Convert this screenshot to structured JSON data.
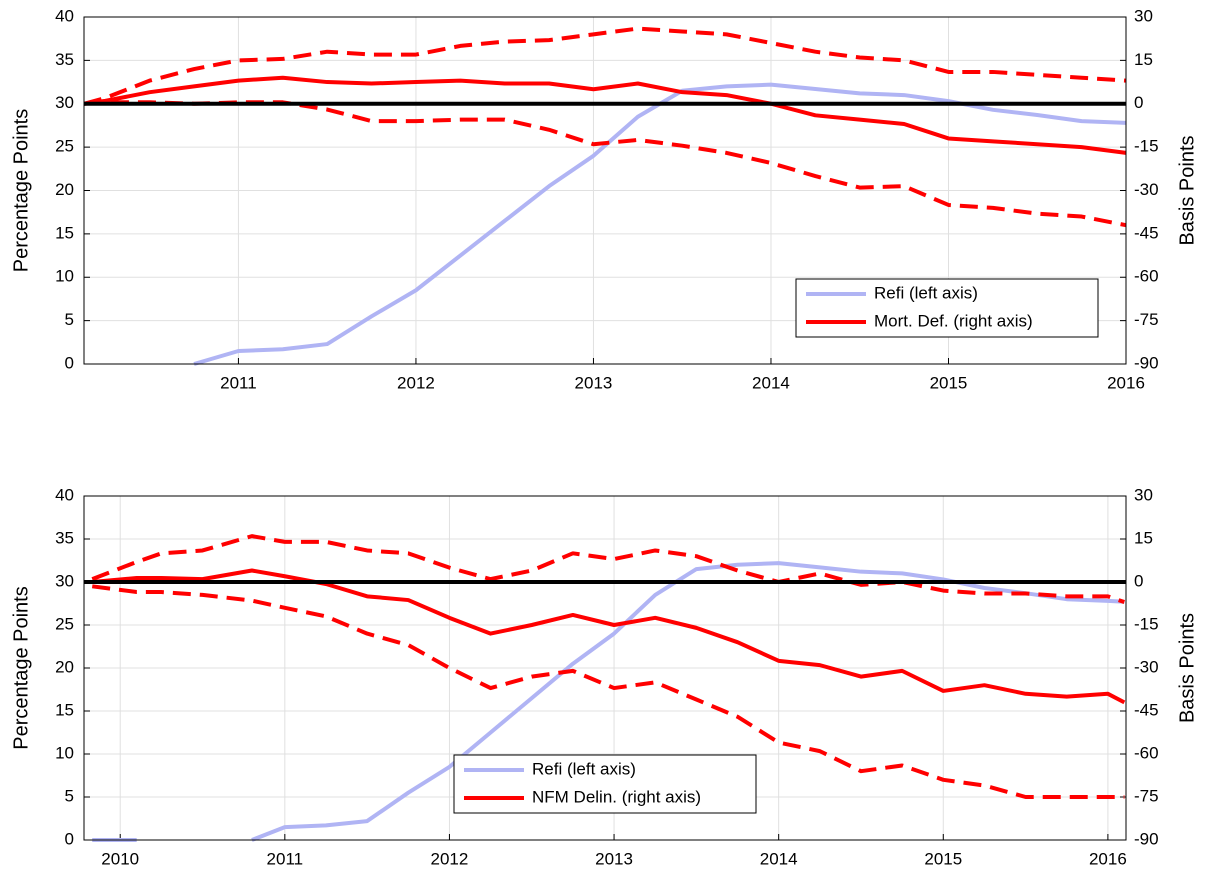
{
  "chart_data": [
    {
      "type": "line",
      "x": [
        2010.13,
        2010.25,
        2010.5,
        2010.75,
        2011,
        2011.25,
        2011.5,
        2011.75,
        2012,
        2012.25,
        2012.5,
        2012.75,
        2013,
        2013.25,
        2013.5,
        2013.75,
        2014,
        2014.25,
        2014.5,
        2014.75,
        2015,
        2015.25,
        2015.5,
        2015.75,
        2016
      ],
      "xlim": [
        2010.13,
        2016
      ],
      "xticks": [
        2011,
        2012,
        2013,
        2014,
        2015,
        2016
      ],
      "ylim": [
        0,
        40
      ],
      "yticks": [
        0,
        5,
        10,
        15,
        20,
        25,
        30,
        35,
        40
      ],
      "y2lim": [
        -90,
        30
      ],
      "y2ticks": [
        -90,
        -75,
        -60,
        -45,
        -30,
        -15,
        0,
        15,
        30
      ],
      "y_label": "Percentage Points",
      "y2_label": "Basis Points",
      "grid": true,
      "legend": "lower right",
      "reference_line": {
        "axis": "y2",
        "value": 0,
        "color": "#000000"
      },
      "series": [
        {
          "name": "Refi (left axis)",
          "color": "#b0b4f4",
          "values": [
            null,
            null,
            null,
            0,
            1.5,
            1.7,
            2.3,
            5.5,
            8.5,
            12.5,
            16.5,
            20.5,
            24,
            28.5,
            31.5,
            32,
            32.2,
            31.7,
            31.2,
            31,
            30.3,
            29.3,
            28.7,
            28,
            27.8
          ]
        },
        {
          "name": "Mort. Def. (right axis)",
          "color": "#ff0000",
          "axis": "y2",
          "values": [
            0,
            1,
            4,
            6,
            8,
            9,
            7.5,
            7,
            7.5,
            8,
            7,
            7,
            5,
            7,
            4,
            3,
            0,
            -4,
            -5.5,
            -7,
            -12,
            -13,
            -14,
            -15,
            -17
          ]
        },
        {
          "color": "#ff0000",
          "axis": "y2",
          "dashed": true,
          "values": [
            0,
            2,
            8,
            12,
            15,
            15.5,
            18,
            17,
            17,
            20,
            21.5,
            22,
            24,
            26,
            25,
            24,
            21,
            18,
            16,
            15,
            11,
            11,
            10,
            9,
            8
          ]
        },
        {
          "color": "#ff0000",
          "axis": "y2",
          "dashed": true,
          "values": [
            0,
            0.5,
            0.5,
            0,
            0.5,
            0.5,
            -2,
            -6,
            -6,
            -5.5,
            -5.5,
            -9,
            -14,
            -12.5,
            -14.5,
            -17,
            -20.5,
            -25,
            -29,
            -28.5,
            -35,
            -36,
            -38,
            -39,
            -42
          ]
        }
      ]
    },
    {
      "type": "line",
      "x": [
        2009.83,
        2010.1,
        2010.25,
        2010.5,
        2010.8,
        2011,
        2011.25,
        2011.5,
        2011.75,
        2012,
        2012.25,
        2012.5,
        2012.75,
        2013,
        2013.25,
        2013.5,
        2013.75,
        2014,
        2014.25,
        2014.5,
        2014.75,
        2015,
        2015.25,
        2015.5,
        2015.75,
        2016,
        2016.1
      ],
      "xlim": [
        2009.78,
        2016.11
      ],
      "xticks": [
        2010,
        2011,
        2012,
        2013,
        2014,
        2015,
        2016
      ],
      "ylim": [
        0,
        40
      ],
      "yticks": [
        0,
        5,
        10,
        15,
        20,
        25,
        30,
        35,
        40
      ],
      "y2lim": [
        -90,
        30
      ],
      "y2ticks": [
        -90,
        -75,
        -60,
        -45,
        -30,
        -15,
        0,
        15,
        30
      ],
      "y_label": "Percentage Points",
      "y2_label": "Basis Points",
      "grid": true,
      "legend": "lower center",
      "reference_line": {
        "axis": "y2",
        "value": 0,
        "color": "#000000"
      },
      "series": [
        {
          "name": "Refi (left axis)",
          "color": "#b0b4f4",
          "values": [
            0,
            0,
            null,
            null,
            0,
            1.5,
            1.7,
            2.2,
            5.5,
            8.5,
            12.5,
            16.5,
            20.5,
            24,
            28.5,
            31.5,
            32,
            32.2,
            31.7,
            31.2,
            31,
            30.3,
            29.3,
            28.7,
            28,
            27.8,
            27.7
          ]
        },
        {
          "name": "NFM Delin. (right axis)",
          "color": "#ff0000",
          "axis": "y2",
          "values": [
            0,
            1.4,
            1.4,
            1,
            4,
            2,
            -0.7,
            -5,
            -6.3,
            -12.5,
            -18,
            -15,
            -11.5,
            -15,
            -12.5,
            -16,
            -21,
            -27.5,
            -29,
            -33,
            -31,
            -38,
            -36,
            -39,
            -40,
            -39,
            -42
          ]
        },
        {
          "color": "#ff0000",
          "axis": "y2",
          "dashed": true,
          "values": [
            1,
            7,
            10,
            11,
            16,
            14,
            14,
            11,
            10,
            5,
            1,
            4,
            10,
            8,
            11,
            9,
            4,
            0,
            3,
            -1,
            0,
            -3,
            -4,
            -4,
            -5,
            -5,
            -7
          ]
        },
        {
          "color": "#ff0000",
          "axis": "y2",
          "dashed": true,
          "values": [
            -1.5,
            -3.5,
            -3.5,
            -4.5,
            -6.5,
            -9,
            -12,
            -18,
            -22,
            -30,
            -37,
            -33,
            -31,
            -37,
            -35,
            -41,
            -47,
            -56,
            -59,
            -66,
            -64,
            -69,
            -71,
            -75,
            -75,
            -75,
            -75
          ]
        }
      ]
    }
  ]
}
